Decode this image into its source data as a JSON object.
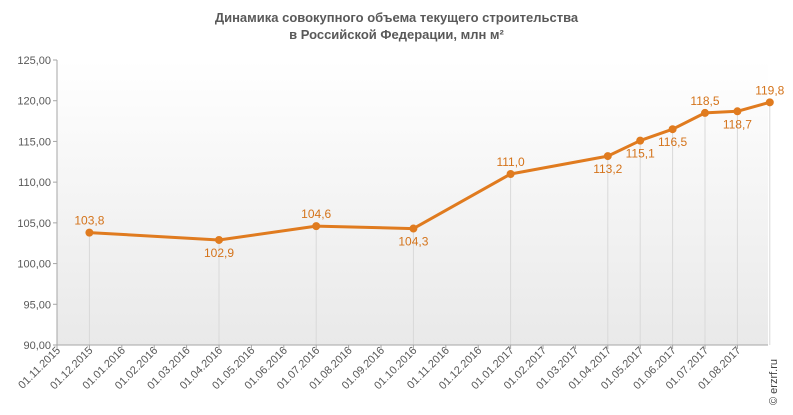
{
  "title": {
    "line1": "Динамика совокупного  объема текущего строительства",
    "line2": "в Российской  Федерации, млн м²"
  },
  "watermark": "© erzrf.ru",
  "colors": {
    "line": "#e07b1f",
    "label": "#d4731a",
    "axis": "#a6a6a6",
    "text": "#595959",
    "drop": "#d9d9d9"
  },
  "chart_data": {
    "type": "line",
    "title": "Динамика совокупного  объема текущего строительства в Российской  Федерации, млн м²",
    "xlabel": "",
    "ylabel": "",
    "ylim": [
      90,
      125
    ],
    "yticks": [
      "90,00",
      "95,00",
      "100,00",
      "105,00",
      "110,00",
      "115,00",
      "120,00",
      "125,00"
    ],
    "categories": [
      "01.11.2015",
      "01.12.2015",
      "01.01.2016",
      "01.02.2016",
      "01.03.2016",
      "01.04.2016",
      "01.05.2016",
      "01.06.2016",
      "01.07.2016",
      "01.08.2016",
      "01.09.2016",
      "01.10.2016",
      "01.11.2016",
      "01.12.2016",
      "01.01.2017",
      "01.02.2017",
      "01.03.2017",
      "01.04.2017",
      "01.05.2017",
      "01.06.2017",
      "01.07.2017",
      "01.08.2017"
    ],
    "grid": false,
    "series": [
      {
        "points": [
          {
            "x": "01.12.2015",
            "y": 103.8,
            "label": "103,8",
            "pos": "above"
          },
          {
            "x": "01.04.2016",
            "y": 102.9,
            "label": "102,9",
            "pos": "below"
          },
          {
            "x": "01.07.2016",
            "y": 104.6,
            "label": "104,6",
            "pos": "above"
          },
          {
            "x": "01.10.2016",
            "y": 104.3,
            "label": "104,3",
            "pos": "below"
          },
          {
            "x": "01.01.2017",
            "y": 111.0,
            "label": "111,0",
            "pos": "above"
          },
          {
            "x": "01.04.2017",
            "y": 113.2,
            "label": "113,2",
            "pos": "below"
          },
          {
            "x": "01.05.2017",
            "y": 115.1,
            "label": "115,1",
            "pos": "below"
          },
          {
            "x": "01.06.2017",
            "y": 116.5,
            "label": "116,5",
            "pos": "below"
          },
          {
            "x": "01.07.2017",
            "y": 118.5,
            "label": "118,5",
            "pos": "above"
          },
          {
            "x": "01.08.2017",
            "y": 118.7,
            "label": "118,7",
            "pos": "below"
          },
          {
            "x": "01.09.2017",
            "y": 119.8,
            "label": "119,8",
            "pos": "above"
          }
        ]
      }
    ]
  }
}
